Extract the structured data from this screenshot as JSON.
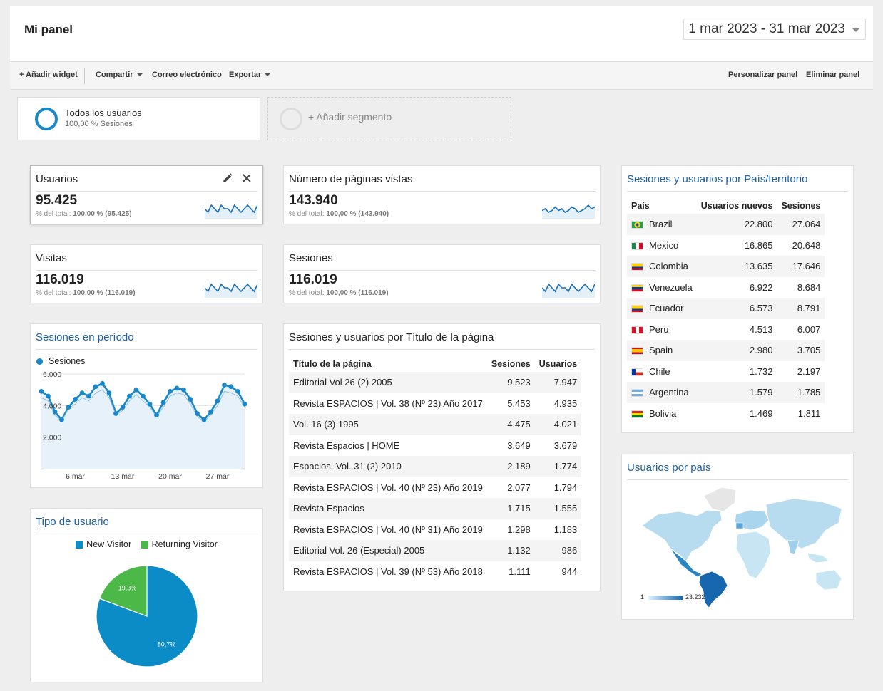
{
  "header": {
    "title": "Mi panel",
    "date_range": "1 mar 2023 - 31 mar 2023"
  },
  "toolbar": {
    "add_widget": "+ Añadir widget",
    "share": "Compartir",
    "email": "Correo electrónico",
    "export": "Exportar",
    "customize": "Personalizar panel",
    "delete": "Eliminar panel"
  },
  "segments": {
    "active": {
      "name": "Todos los usuarios",
      "sub": "100,00 % Sesiones",
      "color": "#1a87c8"
    },
    "add_label": "+ Añadir segmento"
  },
  "metrics": [
    {
      "title": "Usuarios",
      "value": "95.425",
      "sub_prefix": "% del total:",
      "sub_value": "100,00 % (95.425)",
      "spark": [
        5,
        4,
        6,
        5,
        4,
        6,
        5,
        5,
        4,
        6,
        5,
        4,
        5,
        6,
        5,
        4,
        6
      ]
    },
    {
      "title": "Número de páginas vistas",
      "value": "143.940",
      "sub_prefix": "% del total:",
      "sub_value": "100,00 % (143.940)",
      "spark": [
        4,
        5,
        3,
        4,
        6,
        4,
        5,
        3,
        4,
        6,
        5,
        3,
        4,
        5,
        7,
        5,
        6
      ]
    },
    {
      "title": "Visitas",
      "value": "116.019",
      "sub_prefix": "% del total:",
      "sub_value": "100,00 % (116.019)",
      "spark": [
        5,
        4,
        6,
        5,
        4,
        6,
        5,
        5,
        4,
        6,
        5,
        4,
        5,
        6,
        5,
        4,
        6
      ]
    },
    {
      "title": "Sesiones",
      "value": "116.019",
      "sub_prefix": "% del total:",
      "sub_value": "100,00 % (116.019)",
      "spark": [
        5,
        4,
        6,
        5,
        4,
        6,
        5,
        5,
        4,
        6,
        5,
        4,
        5,
        6,
        5,
        4,
        6
      ]
    }
  ],
  "sessions_period": {
    "title": "Sesiones en período",
    "legend": "Sesiones"
  },
  "user_type": {
    "title": "Tipo de usuario"
  },
  "pages_table": {
    "title": "Sesiones y usuarios por Título de la página",
    "headers": [
      "Título de la página",
      "Sesiones",
      "Usuarios"
    ],
    "rows": [
      [
        "Editorial Vol 26 (2) 2005",
        "9.523",
        "7.947"
      ],
      [
        "Revista ESPACIOS | Vol. 38 (Nº 23) Año 2017",
        "5.453",
        "4.935"
      ],
      [
        "Vol. 16 (3) 1995",
        "4.475",
        "4.021"
      ],
      [
        "Revista Espacios | HOME",
        "3.649",
        "3.679"
      ],
      [
        "Espacios. Vol. 31 (2) 2010",
        "2.189",
        "1.774"
      ],
      [
        "Revista ESPACIOS | Vol. 40 (Nº 23) Año 2019",
        "2.077",
        "1.794"
      ],
      [
        "Revista Espacios",
        "1.715",
        "1.555"
      ],
      [
        "Revista ESPACIOS | Vol. 40 (Nº 31) Año 2019",
        "1.298",
        "1.183"
      ],
      [
        "Editorial Vol. 26 (Especial) 2005",
        "1.132",
        "986"
      ],
      [
        "Revista ESPACIOS | Vol. 39 (Nº 53) Año 2018",
        "1.111",
        "944"
      ]
    ]
  },
  "country_table": {
    "title": "Sesiones y usuarios por País/territorio",
    "headers": [
      "País",
      "Usuarios nuevos",
      "Sesiones"
    ],
    "rows": [
      {
        "flag": "brazil-flag-icon",
        "name": "Brazil",
        "new_users": "22.800",
        "sessions": "27.064"
      },
      {
        "flag": "mexico-flag-icon",
        "name": "Mexico",
        "new_users": "16.865",
        "sessions": "20.648"
      },
      {
        "flag": "colombia-flag-icon",
        "name": "Colombia",
        "new_users": "13.635",
        "sessions": "17.646"
      },
      {
        "flag": "venezuela-flag-icon",
        "name": "Venezuela",
        "new_users": "6.922",
        "sessions": "8.684"
      },
      {
        "flag": "ecuador-flag-icon",
        "name": "Ecuador",
        "new_users": "6.573",
        "sessions": "8.791"
      },
      {
        "flag": "peru-flag-icon",
        "name": "Peru",
        "new_users": "4.513",
        "sessions": "6.007"
      },
      {
        "flag": "spain-flag-icon",
        "name": "Spain",
        "new_users": "2.980",
        "sessions": "3.705"
      },
      {
        "flag": "chile-flag-icon",
        "name": "Chile",
        "new_users": "1.732",
        "sessions": "2.197"
      },
      {
        "flag": "argentina-flag-icon",
        "name": "Argentina",
        "new_users": "1.579",
        "sessions": "1.785"
      },
      {
        "flag": "bolivia-flag-icon",
        "name": "Bolivia",
        "new_users": "1.469",
        "sessions": "1.811"
      }
    ]
  },
  "map": {
    "title": "Usuarios por país",
    "scale_min": "1",
    "scale_max": "23.232"
  },
  "colors": {
    "accent": "#1a87c8",
    "link": "#1c5fa0",
    "returning": "#4cb848"
  },
  "chart_data": [
    {
      "type": "line",
      "series": [
        {
          "name": "Sesiones",
          "values": [
            4900,
            4600,
            3600,
            3100,
            3900,
            4400,
            4800,
            4600,
            5200,
            5400,
            4800,
            3500,
            3900,
            4600,
            5000,
            4600,
            4100,
            3400,
            4200,
            4900,
            5100,
            5000,
            4400,
            3500,
            3100,
            3600,
            4300,
            5300,
            5200,
            4900,
            4100
          ]
        },
        {
          "name": "",
          "values": [
            4500,
            4300,
            3400,
            3000,
            3800,
            4100,
            4500,
            4300,
            4800,
            5000,
            4500,
            3400,
            3700,
            4300,
            4700,
            4300,
            3900,
            3300,
            3900,
            4600,
            4800,
            4700,
            4100,
            3300,
            3000,
            3400,
            4000,
            4900,
            4800,
            4600,
            3900
          ]
        }
      ],
      "ylim": [
        0,
        6000
      ],
      "yticks": [
        "6.000",
        "4.000",
        "2.000"
      ],
      "xticks": [
        "6 mar",
        "13 mar",
        "20 mar",
        "27 mar"
      ]
    },
    {
      "type": "pie",
      "categories": [
        "New Visitor",
        "Returning Visitor"
      ],
      "values": [
        80.7,
        19.3
      ],
      "labels": [
        "80,7%",
        "19,3%"
      ],
      "colors": [
        "#0c8cc6",
        "#4cb848"
      ]
    }
  ]
}
